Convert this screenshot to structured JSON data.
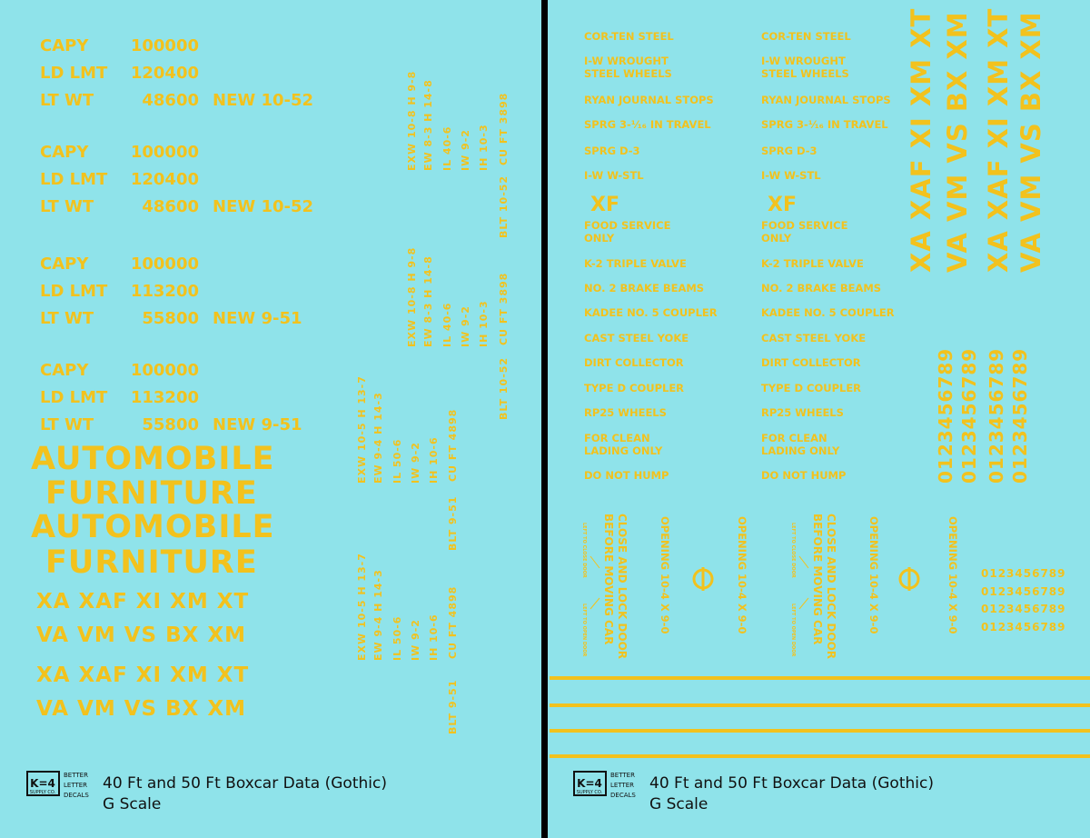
{
  "left": {
    "capacity": [
      [
        [
          "CAPY",
          "100000"
        ],
        [
          "LD LMT",
          "120400"
        ],
        [
          "LT WT",
          "48600",
          "NEW 10-52"
        ]
      ],
      [
        [
          "CAPY",
          "100000"
        ],
        [
          "LD LMT",
          "120400"
        ],
        [
          "LT WT",
          "48600",
          "NEW 10-52"
        ]
      ],
      [
        [
          "CAPY",
          "100000"
        ],
        [
          "LD LMT",
          "113200"
        ],
        [
          "LT WT",
          "55800",
          "NEW 9-51"
        ]
      ],
      [
        [
          "CAPY",
          "100000"
        ],
        [
          "LD LMT",
          "113200"
        ],
        [
          "LT WT",
          "55800",
          "NEW 9-51"
        ]
      ]
    ],
    "dimensions": [
      [
        "EXW 10-8 H 9-8",
        "EW 8-3 H 14-8",
        "IL 40-6",
        "IW 9-2",
        "IH 10-3",
        "CU FT 3898",
        "BLT 10-52"
      ],
      [
        "EXW 10-8 H 9-8",
        "EW 8-3 H 14-8",
        "IL 40-6",
        "IW 9-2",
        "IH 10-3",
        "CU FT 3898",
        "BLT 10-52"
      ],
      [
        "EXW 10-5 H 13-7",
        "EW 9-4 H 14-3",
        "IL 50-6",
        "IW 9-2",
        "IH 10-6",
        "CU FT 4898",
        "BLT 9-51"
      ],
      [
        "EXW 10-5 H 13-7",
        "EW 9-4 H 14-3",
        "IL 50-6",
        "IW 9-2",
        "IH 10-6",
        "CU FT 4898",
        "BLT 9-51"
      ]
    ],
    "commodity": [
      "AUTOMOBILE",
      "FURNITURE",
      "AUTOMOBILE",
      "FURNITURE"
    ],
    "reporting_marks": [
      "XA XAF XI XM XT",
      "VA VM VS BX XM",
      "XA XAF XI XM XT",
      "VA VM VS BX XM"
    ],
    "footer": {
      "logo": "K=4",
      "logo_sub": "SUPPLY CO.",
      "tagline": [
        "BETTER",
        "LETTER",
        "DECALS"
      ],
      "title": "40 Ft and 50 Ft Boxcar Data (Gothic)",
      "scale": "G Scale"
    }
  },
  "right": {
    "equipment_columns": [
      [
        [
          "COR-TEN STEEL"
        ],
        [
          "I-W WROUGHT",
          "STEEL WHEELS"
        ],
        [
          "RYAN JOURNAL STOPS"
        ],
        [
          "SPRG 3-¹⁄₁₆ IN TRAVEL"
        ],
        [
          "SPRG D-3"
        ],
        [
          "I-W W-STL"
        ],
        [
          "XF"
        ],
        [
          "FOOD SERVICE",
          "ONLY"
        ],
        [
          "K-2 TRIPLE VALVE"
        ],
        [
          "NO. 2 BRAKE BEAMS"
        ],
        [
          "KADEE NO. 5 COUPLER"
        ],
        [
          "CAST STEEL YOKE"
        ],
        [
          "DIRT COLLECTOR"
        ],
        [
          "TYPE D COUPLER"
        ],
        [
          "RP25 WHEELS"
        ],
        [
          "FOR CLEAN",
          "LADING ONLY"
        ],
        [
          "DO NOT HUMP"
        ]
      ],
      [
        [
          "COR-TEN STEEL"
        ],
        [
          "I-W WROUGHT",
          "STEEL WHEELS"
        ],
        [
          "RYAN JOURNAL STOPS"
        ],
        [
          "SPRG 3-¹⁄₁₆ IN TRAVEL"
        ],
        [
          "SPRG D-3"
        ],
        [
          "I-W W-STL"
        ],
        [
          "XF"
        ],
        [
          "FOOD SERVICE",
          "ONLY"
        ],
        [
          "K-2 TRIPLE VALVE"
        ],
        [
          "NO. 2 BRAKE BEAMS"
        ],
        [
          "KADEE NO. 5 COUPLER"
        ],
        [
          "CAST STEEL YOKE"
        ],
        [
          "DIRT COLLECTOR"
        ],
        [
          "TYPE D COUPLER"
        ],
        [
          "RP25 WHEELS"
        ],
        [
          "FOR CLEAN",
          "LADING ONLY"
        ],
        [
          "DO NOT HUMP"
        ]
      ]
    ],
    "vertical_marks": [
      "XA XAF XI XM XT",
      "VA VM VS BX XM",
      "XA XAF XI XM XT",
      "VA VM VS BX XM"
    ],
    "vertical_numbers": [
      "0123456789",
      "0123456789",
      "0123456789",
      "0123456789"
    ],
    "numbers": [
      "0123456789",
      "0123456789",
      "0123456789",
      "0123456789"
    ],
    "door_groups": [
      {
        "warning": [
          "CLOSE AND LOCK DOOR",
          "BEFORE MOVING CAR"
        ],
        "close_note": "LEFT TO CLOSE DOOR",
        "open_note": "LEFT TO OPEN DOOR",
        "openings": [
          "OPENING 10-4 X 9-0",
          "OPENING 10-4 X 9-0"
        ]
      },
      {
        "warning": [
          "CLOSE AND LOCK DOOR",
          "BEFORE MOVING CAR"
        ],
        "close_note": "LEFT TO CLOSE DOOR",
        "open_note": "LEFT TO OPEN DOOR",
        "openings": [
          "OPENING 10-4 X 9-0",
          "OPENING 10-4 X 9-0"
        ]
      }
    ],
    "footer": {
      "logo": "K=4",
      "logo_sub": "SUPPLY CO.",
      "tagline": [
        "BETTER",
        "LETTER",
        "DECALS"
      ],
      "title": "40 Ft and 50 Ft Boxcar Data (Gothic)",
      "scale": "G Scale"
    }
  }
}
